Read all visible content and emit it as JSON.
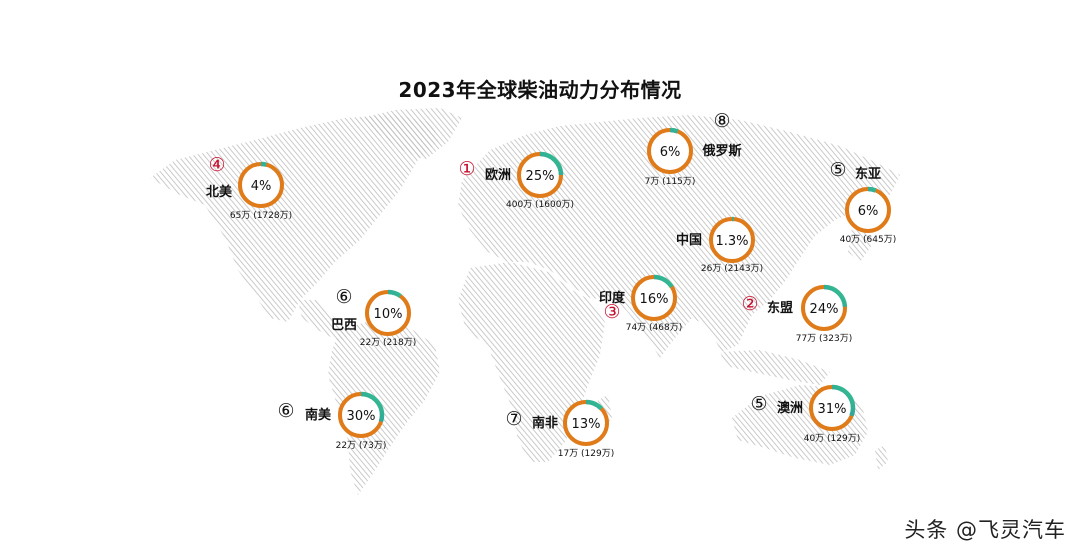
{
  "chart_data": {
    "type": "donut-map",
    "title": "2023年全球柴油动力分布情况",
    "regions": [
      {
        "rank": "④",
        "rank_color": "#c8102e",
        "name": "北美",
        "share": "4%",
        "share_value": 0.04,
        "volume": "65万 (1728万)"
      },
      {
        "rank": "①",
        "rank_color": "#c8102e",
        "name": "欧洲",
        "share": "25%",
        "share_value": 0.25,
        "volume": "400万 (1600万)"
      },
      {
        "rank": "⑧",
        "rank_color": "#111111",
        "name": "俄罗斯",
        "share": "6%",
        "share_value": 0.06,
        "volume": "7万 (115万)"
      },
      {
        "rank": "⑤",
        "rank_color": "#111111",
        "name": "东亚",
        "share": "6%",
        "share_value": 0.06,
        "volume": "40万 (645万)"
      },
      {
        "rank": "",
        "rank_color": "#111111",
        "name": "中国",
        "share": "1.3%",
        "share_value": 0.013,
        "volume": "26万 (2143万)"
      },
      {
        "rank": "③",
        "rank_color": "#c8102e",
        "name": "印度",
        "share": "16%",
        "share_value": 0.16,
        "volume": "74万 (468万)"
      },
      {
        "rank": "②",
        "rank_color": "#c8102e",
        "name": "东盟",
        "share": "24%",
        "share_value": 0.24,
        "volume": "77万 (323万)"
      },
      {
        "rank": "⑥",
        "rank_color": "#111111",
        "name": "巴西",
        "share": "10%",
        "share_value": 0.1,
        "volume": "22万 (218万)"
      },
      {
        "rank": "⑥",
        "rank_color": "#111111",
        "name": "南美",
        "share": "30%",
        "share_value": 0.3,
        "volume": "22万 (73万)"
      },
      {
        "rank": "⑦",
        "rank_color": "#111111",
        "name": "南非",
        "share": "13%",
        "share_value": 0.13,
        "volume": "17万 (129万)"
      },
      {
        "rank": "⑤",
        "rank_color": "#111111",
        "name": "澳洲",
        "share": "31%",
        "share_value": 0.31,
        "volume": "40万 (129万)"
      }
    ]
  },
  "colors": {
    "ring_base": "#e07b1a",
    "ring_share_start": "#2a6fa8",
    "ring_share_end": "#34c38f",
    "map": "#c9c9c9",
    "rank_red": "#c8102e"
  },
  "watermark": "头条 @飞灵汽车"
}
